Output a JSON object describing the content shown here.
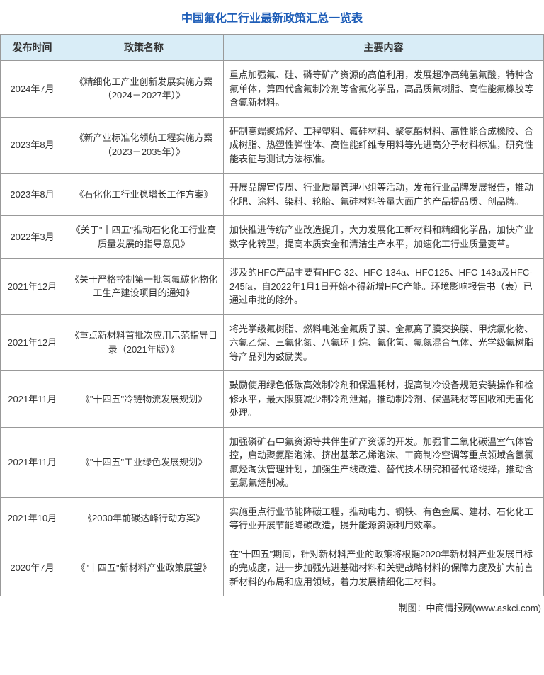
{
  "title": "中国氟化工行业最新政策汇总一览表",
  "title_color": "#1f5eb8",
  "header_bg": "#d9edf7",
  "border_color": "#999999",
  "text_color": "#333333",
  "columns": [
    "发布时间",
    "政策名称",
    "主要内容"
  ],
  "rows": [
    {
      "date": "2024年7月",
      "name": "《精细化工产业创新发展实施方案（2024－2027年）》",
      "content": "重点加强氟、硅、磷等矿产资源的高值利用，发展超净高纯氢氟酸，特种含氟单体，第四代含氟制冷剂等含氟化学品，高品质氟树脂、高性能氟橡胶等含氟新材料。"
    },
    {
      "date": "2023年8月",
      "name": "《新产业标准化领航工程实施方案（2023－2035年）》",
      "content": "研制高端聚烯烃、工程塑料、氟硅材料、聚氨酯材料、高性能合成橡胶、合成树脂、热塑性弹性体、高性能纤维专用料等先进高分子材料标准，研究性能表征与测试方法标准。"
    },
    {
      "date": "2023年8月",
      "name": "《石化化工行业稳增长工作方案》",
      "content": "开展品牌宣传周、行业质量管理小组等活动，发布行业品牌发展报告，推动化肥、涂料、染料、轮胎、氟硅材料等量大面广的产品提品质、创品牌。"
    },
    {
      "date": "2022年3月",
      "name": "《关于\"十四五\"推动石化化工行业高质量发展的指导意见》",
      "content": "加快推进传统产业改造提升，大力发展化工新材料和精细化学品，加快产业数字化转型，提高本质安全和清洁生产水平，加速化工行业质量变革。"
    },
    {
      "date": "2021年12月",
      "name": "《关于严格控制第一批氢氟碳化物化工生产建设项目的通知》",
      "content": "涉及的HFC产品主要有HFC-32、HFC-134a、HFC125、HFC-143a及HFC-245fa，自2022年1月1日开始不得新增HFC产能。环境影响报告书（表）已通过审批的除外。"
    },
    {
      "date": "2021年12月",
      "name": "《重点新材料首批次应用示范指导目录（2021年版）》",
      "content": "将光学级氟树脂、燃料电池全氟质子膜、全氟离子膜交换膜、甲烷氯化物、六氟乙烷、三氟化氮、八氟环丁烷、氟化氢、氟氮混合气体、光学级氟树脂等产品列为鼓励类。"
    },
    {
      "date": "2021年11月",
      "name": "《\"十四五\"冷链物流发展规划》",
      "content": "鼓励使用绿色低碳高效制冷剂和保温耗材，提高制冷设备规范安装操作和检修水平，最大限度减少制冷剂泄漏，推动制冷剂、保温耗材等回收和无害化处理。"
    },
    {
      "date": "2021年11月",
      "name": "《\"十四五\"工业绿色发展规划》",
      "content": "加强磷矿石中氟资源等共伴生矿产资源的开发。加强非二氧化碳温室气体管控，启动聚氨酯泡沫、挤出基苯乙烯泡沫、工商制冷空调等重点领域含氢氯氟烃淘汰管理计划，加强生产线改造、替代技术研究和替代路线择，推动含氢氯氟烃削减。"
    },
    {
      "date": "2021年10月",
      "name": "《2030年前碳达峰行动方案》",
      "content": "实施重点行业节能降碳工程，推动电力、钢铁、有色金属、建材、石化化工等行业开展节能降碳改造，提升能源资源利用效率。"
    },
    {
      "date": "2020年7月",
      "name": "《\"十四五\"新材料产业政策展望》",
      "content": "在\"十四五\"期间，针对新材料产业的政策将根据2020年新材料产业发展目标的完成度，进一步加强先进基础材料和关键战略材料的保障力度及扩大前言新材料的布局和应用领域，着力发展精细化工材料。"
    }
  ],
  "footer": "制图：中商情报网(www.askci.com)"
}
